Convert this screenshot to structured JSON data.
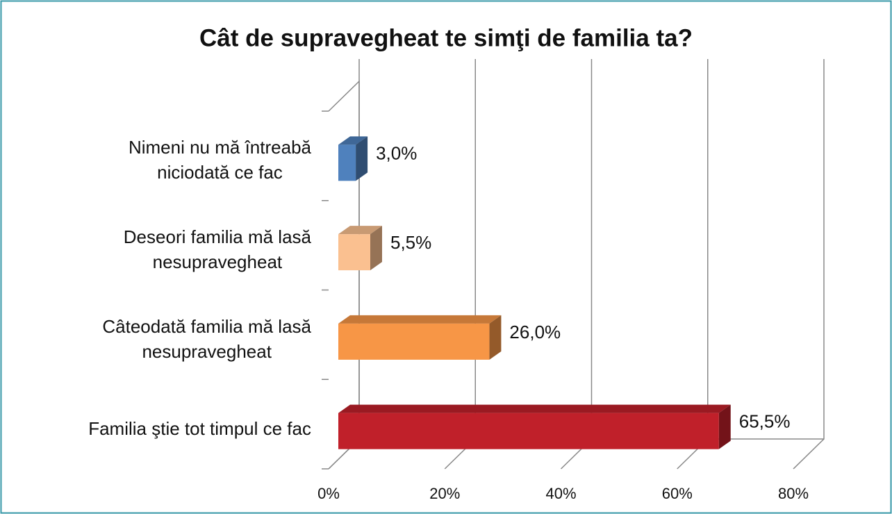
{
  "chart_data": {
    "type": "bar3d_horizontal",
    "title": "Cât de supravegheat te simţi de familia ta?",
    "categories": [
      "Nimeni nu mă întreabă\nniciodată ce fac",
      "Deseori familia mă lasă\nnesupravegheat",
      "Câteodată familia mă lasă\nnesupravegheat",
      "Familia ştie tot timpul ce fac"
    ],
    "values": [
      3.0,
      5.5,
      26.0,
      65.5
    ],
    "value_labels": [
      "3,0%",
      "5,5%",
      "26,0%",
      "65,5%"
    ],
    "colors": [
      "#4f81bd",
      "#fac090",
      "#f79646",
      "#c0202a"
    ],
    "xlim": [
      0,
      80
    ],
    "xticks": [
      {
        "value": 0,
        "label": "0%"
      },
      {
        "value": 20,
        "label": "20%"
      },
      {
        "value": 40,
        "label": "40%"
      },
      {
        "value": 60,
        "label": "60%"
      },
      {
        "value": 80,
        "label": "80%"
      }
    ],
    "grid": true
  }
}
